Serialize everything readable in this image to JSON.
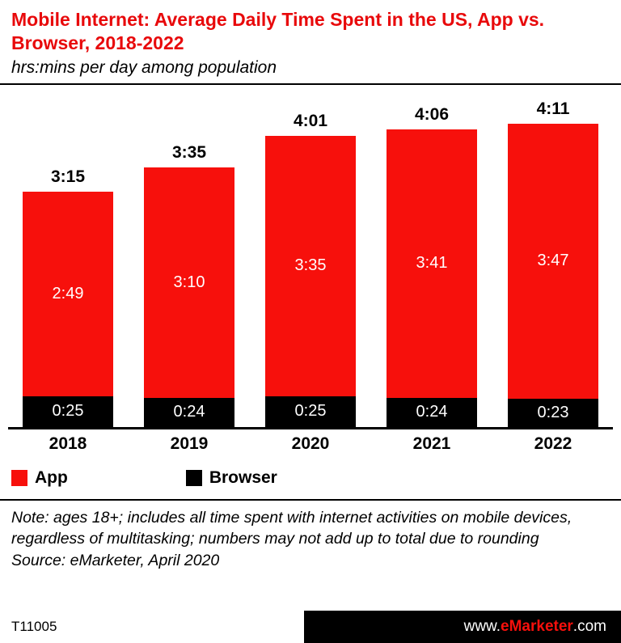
{
  "header": {
    "title": "Mobile Internet: Average Daily Time Spent in the US, App vs. Browser, 2018-2022",
    "subtitle": "hrs:mins per day among population"
  },
  "chart_data": {
    "type": "bar",
    "stacked": true,
    "grid": false,
    "legend_position": "bottom-left",
    "categories": [
      "2018",
      "2019",
      "2020",
      "2021",
      "2022"
    ],
    "totals": [
      "3:15",
      "3:35",
      "4:01",
      "4:06",
      "4:11"
    ],
    "total_minutes": [
      195,
      215,
      241,
      246,
      251
    ],
    "series": [
      {
        "name": "App",
        "color": "#f7100c",
        "labels": [
          "2:49",
          "3:10",
          "3:35",
          "3:41",
          "3:47"
        ],
        "minutes": [
          169,
          190,
          215,
          221,
          227
        ]
      },
      {
        "name": "Browser",
        "color": "#000000",
        "labels": [
          "0:25",
          "0:24",
          "0:25",
          "0:24",
          "0:23"
        ],
        "minutes": [
          25,
          24,
          25,
          24,
          23
        ]
      }
    ],
    "value_unit": "hrs:mins per day"
  },
  "notes": {
    "note": "Note: ages 18+; includes all time spent with internet activities on mobile devices, regardless of multitasking; numbers may not add up to total due to rounding",
    "source": "Source: eMarketer, April 2020"
  },
  "footer": {
    "chart_id": "T11005",
    "website_prefix": "www.",
    "website_brand": "eMarketer",
    "website_suffix": ".com"
  },
  "colors": {
    "accent_red": "#e8090b",
    "bar_red": "#f7100c",
    "bar_black": "#000000",
    "background": "#ffffff"
  }
}
